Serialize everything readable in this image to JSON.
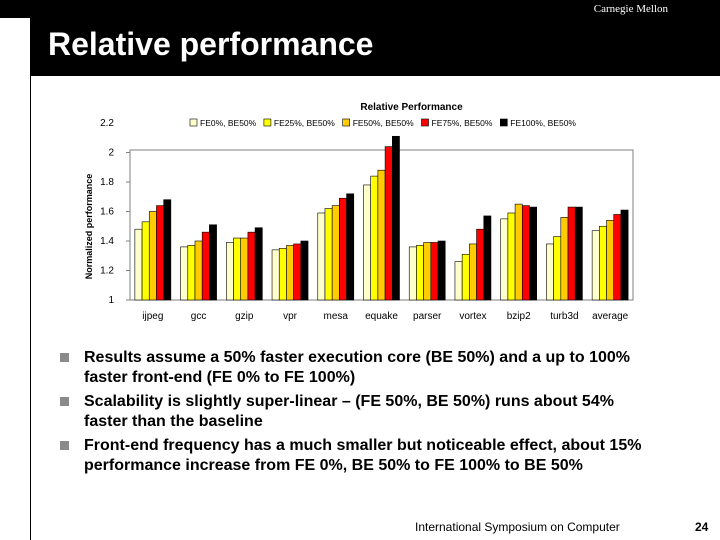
{
  "header": {
    "brand": "Carnegie Mellon",
    "title": "Relative performance"
  },
  "chart_data": {
    "type": "bar",
    "title": "Relative Performance",
    "ylabel": "Normalized performance",
    "xlabel": "",
    "ylim": [
      1,
      2.2
    ],
    "yticks": [
      1,
      1.2,
      1.4,
      1.6,
      1.8,
      2,
      2.2
    ],
    "categories": [
      "ijpeg",
      "gcc",
      "gzip",
      "vpr",
      "mesa",
      "equake",
      "parser",
      "vortex",
      "bzip2",
      "turb3d",
      "average"
    ],
    "series": [
      {
        "name": "FE0%, BE50%",
        "color": "#ffffcc",
        "values": [
          1.48,
          1.36,
          1.39,
          1.34,
          1.59,
          1.78,
          1.36,
          1.26,
          1.55,
          1.38,
          1.47
        ]
      },
      {
        "name": "FE25%, BE50%",
        "color": "#ffff00",
        "values": [
          1.53,
          1.37,
          1.42,
          1.35,
          1.62,
          1.84,
          1.37,
          1.31,
          1.59,
          1.43,
          1.5
        ]
      },
      {
        "name": "FE50%, BE50%",
        "color": "#ffcc00",
        "values": [
          1.6,
          1.4,
          1.42,
          1.37,
          1.64,
          1.88,
          1.39,
          1.38,
          1.65,
          1.56,
          1.54
        ]
      },
      {
        "name": "FE75%, BE50%",
        "color": "#ff0000",
        "values": [
          1.64,
          1.46,
          1.46,
          1.38,
          1.69,
          2.04,
          1.39,
          1.48,
          1.64,
          1.63,
          1.58
        ]
      },
      {
        "name": "FE100%, BE50%",
        "color": "#000000",
        "values": [
          1.68,
          1.51,
          1.49,
          1.4,
          1.72,
          2.11,
          1.4,
          1.57,
          1.63,
          1.63,
          1.61
        ]
      }
    ],
    "legend_position": "top",
    "grid": false
  },
  "bullets": [
    "Results assume a 50% faster execution core (BE 50%) and a up to 100% faster front-end (FE 0% to FE 100%)",
    "Scalability is slightly super-linear – (FE 50%, BE 50%) runs about 54% faster than the baseline",
    "Front-end frequency has a much smaller but noticeable effect, about 15% performance increase from FE 0%, BE 50% to FE 100% to BE 50%"
  ],
  "footer": {
    "text": "International Symposium on Computer",
    "page": "24"
  }
}
